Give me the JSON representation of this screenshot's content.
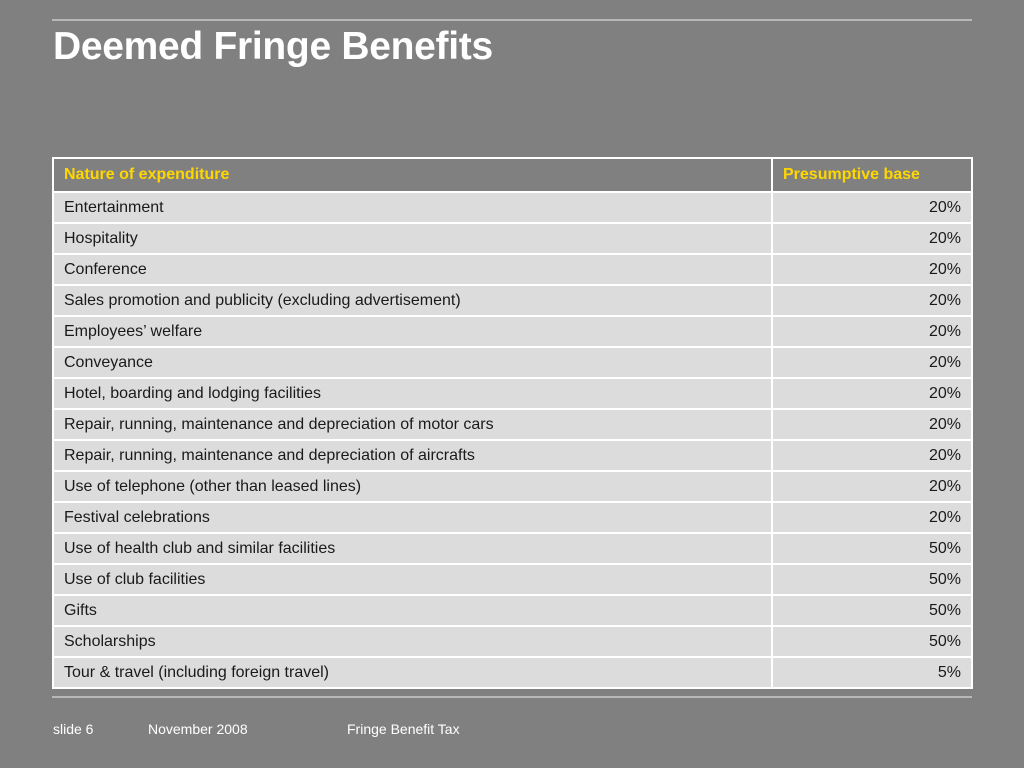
{
  "slide": {
    "title": "Deemed Fringe Benefits"
  },
  "table": {
    "headers": {
      "nature": "Nature of expenditure",
      "base": "Presumptive base"
    },
    "rows": [
      {
        "nature": "Entertainment",
        "base": "20%"
      },
      {
        "nature": "Hospitality",
        "base": "20%"
      },
      {
        "nature": "Conference",
        "base": "20%"
      },
      {
        "nature": "Sales promotion and publicity (excluding advertisement)",
        "base": "20%"
      },
      {
        "nature": "Employees’ welfare",
        "base": "20%"
      },
      {
        "nature": "Conveyance",
        "base": "20%"
      },
      {
        "nature": "Hotel, boarding and lodging facilities",
        "base": "20%"
      },
      {
        "nature": "Repair, running, maintenance and depreciation of motor cars",
        "base": "20%"
      },
      {
        "nature": "Repair, running, maintenance and depreciation of aircrafts",
        "base": "20%"
      },
      {
        "nature": "Use of telephone (other than leased lines)",
        "base": "20%"
      },
      {
        "nature": "Festival celebrations",
        "base": "20%"
      },
      {
        "nature": "Use of health club and similar facilities",
        "base": "50%"
      },
      {
        "nature": "Use of club facilities",
        "base": "50%"
      },
      {
        "nature": "Gifts",
        "base": "50%"
      },
      {
        "nature": "Scholarships",
        "base": "50%"
      },
      {
        "nature": "Tour & travel (including foreign travel)",
        "base": "5%"
      }
    ]
  },
  "footer": {
    "slide_number": "slide 6",
    "date": "November 2008",
    "topic": "Fringe Benefit Tax"
  },
  "colors": {
    "background": "#808080",
    "title": "#ffffff",
    "header_text": "#ffd700",
    "row_fill": "#dcdcdc",
    "grid": "#ffffff"
  }
}
